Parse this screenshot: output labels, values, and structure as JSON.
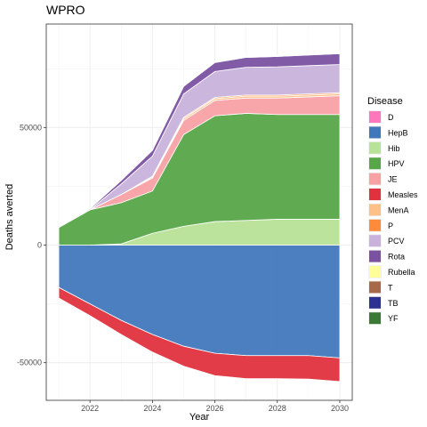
{
  "chart_data": {
    "type": "area",
    "title": "WPRO",
    "xlabel": "Year",
    "ylabel": "Deaths averted",
    "xlim": [
      2020.6,
      2030.4
    ],
    "ylim": [
      -66000,
      94000
    ],
    "x_ticks": [
      2022,
      2024,
      2026,
      2028,
      2030
    ],
    "y_ticks": [
      -50000,
      0,
      50000
    ],
    "grid": true,
    "legend": {
      "title": "Disease",
      "placement": "right"
    },
    "x": [
      2021,
      2022,
      2023,
      2024,
      2025,
      2026,
      2027,
      2028,
      2029,
      2030
    ],
    "series": [
      {
        "name": "D",
        "color": "#FF77BB",
        "values": [
          0,
          0,
          0,
          0,
          0,
          0,
          0,
          0,
          0,
          0
        ]
      },
      {
        "name": "HepB",
        "color": "#4178BC",
        "values": [
          -18000,
          -25000,
          -32000,
          -38000,
          -43000,
          -46000,
          -47000,
          -47000,
          -47000,
          -48000
        ]
      },
      {
        "name": "Hib",
        "color": "#B8E297",
        "values": [
          0,
          0,
          500,
          5000,
          8000,
          10000,
          10500,
          11000,
          11000,
          11000
        ]
      },
      {
        "name": "HPV",
        "color": "#57A748",
        "values": [
          7500,
          15000,
          17500,
          18000,
          39000,
          45000,
          45500,
          44500,
          44500,
          44500
        ]
      },
      {
        "name": "JE",
        "color": "#F8A1A4",
        "values": [
          0,
          0,
          3500,
          5500,
          6000,
          6500,
          6500,
          7000,
          7500,
          8000
        ]
      },
      {
        "name": "Measles",
        "color": "#E0313F",
        "values": [
          -4500,
          -5000,
          -6000,
          -7500,
          -8500,
          -9500,
          -9800,
          -9800,
          -10000,
          -10000
        ]
      },
      {
        "name": "MenA",
        "color": "#FDC086",
        "values": [
          0,
          0,
          0,
          500,
          800,
          800,
          800,
          800,
          800,
          800
        ]
      },
      {
        "name": "P",
        "color": "#FF8A3A",
        "values": [
          0,
          0,
          0,
          300,
          500,
          500,
          500,
          500,
          500,
          500
        ]
      },
      {
        "name": "PCV",
        "color": "#C8B2DC",
        "values": [
          0,
          0,
          4500,
          8500,
          10000,
          11000,
          11800,
          12000,
          12000,
          12000
        ]
      },
      {
        "name": "Rota",
        "color": "#7B52A1",
        "values": [
          0,
          500,
          1500,
          2500,
          3200,
          3800,
          4200,
          4400,
          4500,
          4600
        ]
      },
      {
        "name": "Rubella",
        "color": "#FFFF99",
        "values": [
          0,
          0,
          100,
          200,
          300,
          300,
          300,
          300,
          300,
          300
        ]
      },
      {
        "name": "T",
        "color": "#A7694A",
        "values": [
          0,
          0,
          100,
          200,
          300,
          300,
          300,
          300,
          300,
          300
        ]
      },
      {
        "name": "TB",
        "color": "#2E3192",
        "values": [
          0,
          0,
          0,
          0,
          0,
          0,
          0,
          0,
          0,
          0
        ]
      },
      {
        "name": "YF",
        "color": "#3A7A34",
        "values": [
          0,
          0,
          0,
          0,
          0,
          0,
          0,
          0,
          0,
          0
        ]
      }
    ]
  }
}
